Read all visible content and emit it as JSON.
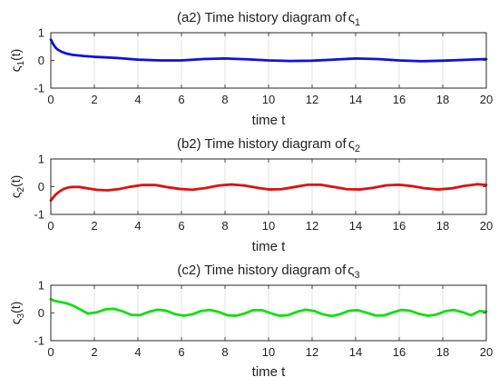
{
  "chart_data": [
    {
      "type": "line",
      "title": "(a2) Time history diagram of",
      "title_symbol": "ς",
      "title_sub": "1",
      "xlabel": "time t",
      "ylabel": "ς",
      "ylabel_sub": "1",
      "ylabel_suffix": "(t)",
      "xlim": [
        0,
        20
      ],
      "ylim": [
        -1,
        1
      ],
      "xticks": [
        "0",
        "2",
        "4",
        "6",
        "8",
        "10",
        "12",
        "14",
        "16",
        "18",
        "20"
      ],
      "yticks": [
        "-1",
        "0",
        "1"
      ],
      "grid": "vertical",
      "series": [
        {
          "color": "#1010e0",
          "x": [
            0,
            0.1,
            0.2,
            0.3,
            0.5,
            0.75,
            1.0,
            1.5,
            2.0,
            3.0,
            4.0,
            5.0,
            6.0,
            7.0,
            8.0,
            9.0,
            10.0,
            11.0,
            12.0,
            13.0,
            14.0,
            15.0,
            16.0,
            17.0,
            18.0,
            19.0,
            20.0
          ],
          "y": [
            0.75,
            0.6,
            0.48,
            0.4,
            0.31,
            0.24,
            0.2,
            0.16,
            0.13,
            0.09,
            0.03,
            0.0,
            0.0,
            0.05,
            0.07,
            0.04,
            0.0,
            -0.02,
            -0.01,
            0.03,
            0.07,
            0.05,
            0.0,
            -0.03,
            -0.01,
            0.02,
            0.05
          ]
        }
      ]
    },
    {
      "type": "line",
      "title": "(b2) Time history diagram of",
      "title_symbol": "ς",
      "title_sub": "2",
      "xlabel": "time t",
      "ylabel": "ς",
      "ylabel_sub": "2",
      "ylabel_suffix": "(t)",
      "xlim": [
        0,
        20
      ],
      "ylim": [
        -1,
        1
      ],
      "xticks": [
        "0",
        "2",
        "4",
        "6",
        "8",
        "10",
        "12",
        "14",
        "16",
        "18",
        "20"
      ],
      "yticks": [
        "-1",
        "0",
        "1"
      ],
      "grid": "vertical",
      "series": [
        {
          "color": "#e01010",
          "x": [
            0,
            0.1,
            0.2,
            0.4,
            0.6,
            0.8,
            1.0,
            1.3,
            1.7,
            2.1,
            2.6,
            3.1,
            3.6,
            4.2,
            4.8,
            5.3,
            5.9,
            6.5,
            7.1,
            7.7,
            8.3,
            8.9,
            9.5,
            10.0,
            10.6,
            11.2,
            11.8,
            12.4,
            13.0,
            13.6,
            14.2,
            14.8,
            15.4,
            16.0,
            16.6,
            17.2,
            17.8,
            18.4,
            19.0,
            19.6,
            20.0
          ],
          "y": [
            -0.5,
            -0.4,
            -0.3,
            -0.17,
            -0.08,
            -0.03,
            -0.01,
            -0.01,
            -0.06,
            -0.11,
            -0.13,
            -0.09,
            -0.01,
            0.06,
            0.06,
            -0.01,
            -0.08,
            -0.11,
            -0.05,
            0.04,
            0.08,
            0.04,
            -0.04,
            -0.1,
            -0.09,
            -0.01,
            0.07,
            0.07,
            -0.01,
            -0.09,
            -0.1,
            -0.04,
            0.05,
            0.07,
            0.02,
            -0.06,
            -0.1,
            -0.06,
            0.03,
            0.09,
            0.06
          ]
        }
      ]
    },
    {
      "type": "line",
      "title": "(c2) Time history diagram of",
      "title_symbol": "ς",
      "title_sub": "3",
      "xlabel": "time t",
      "ylabel": "ς",
      "ylabel_sub": "3",
      "ylabel_suffix": "(t)",
      "xlim": [
        0,
        20
      ],
      "ylim": [
        -1,
        1
      ],
      "xticks": [
        "0",
        "2",
        "4",
        "6",
        "8",
        "10",
        "12",
        "14",
        "16",
        "18",
        "20"
      ],
      "yticks": [
        "-1",
        "0",
        "1"
      ],
      "grid": "vertical",
      "series": [
        {
          "color": "#10e010",
          "x": [
            0,
            0.1,
            0.2,
            0.4,
            0.6,
            0.8,
            1.0,
            1.3,
            1.7,
            2.1,
            2.5,
            2.9,
            3.3,
            3.7,
            4.1,
            4.5,
            4.9,
            5.3,
            5.7,
            6.1,
            6.5,
            6.9,
            7.3,
            7.7,
            8.1,
            8.5,
            8.9,
            9.3,
            9.7,
            10.1,
            10.5,
            10.9,
            11.3,
            11.7,
            12.1,
            12.5,
            12.9,
            13.3,
            13.7,
            14.1,
            14.5,
            14.9,
            15.3,
            15.7,
            16.1,
            16.5,
            16.9,
            17.3,
            17.7,
            18.1,
            18.5,
            18.9,
            19.3,
            19.7,
            20.0
          ],
          "y": [
            0.5,
            0.46,
            0.43,
            0.4,
            0.37,
            0.33,
            0.27,
            0.15,
            -0.02,
            0.02,
            0.13,
            0.15,
            0.06,
            -0.07,
            -0.08,
            0.04,
            0.12,
            0.08,
            -0.04,
            -0.1,
            -0.05,
            0.07,
            0.11,
            0.04,
            -0.08,
            -0.1,
            -0.02,
            0.1,
            0.1,
            -0.01,
            -0.1,
            -0.08,
            0.04,
            0.12,
            0.07,
            -0.05,
            -0.11,
            -0.04,
            0.08,
            0.1,
            0.01,
            -0.09,
            -0.09,
            0.02,
            0.11,
            0.08,
            -0.03,
            -0.1,
            -0.06,
            0.06,
            0.11,
            0.03,
            -0.08,
            0.07,
            0.05
          ]
        }
      ]
    }
  ]
}
